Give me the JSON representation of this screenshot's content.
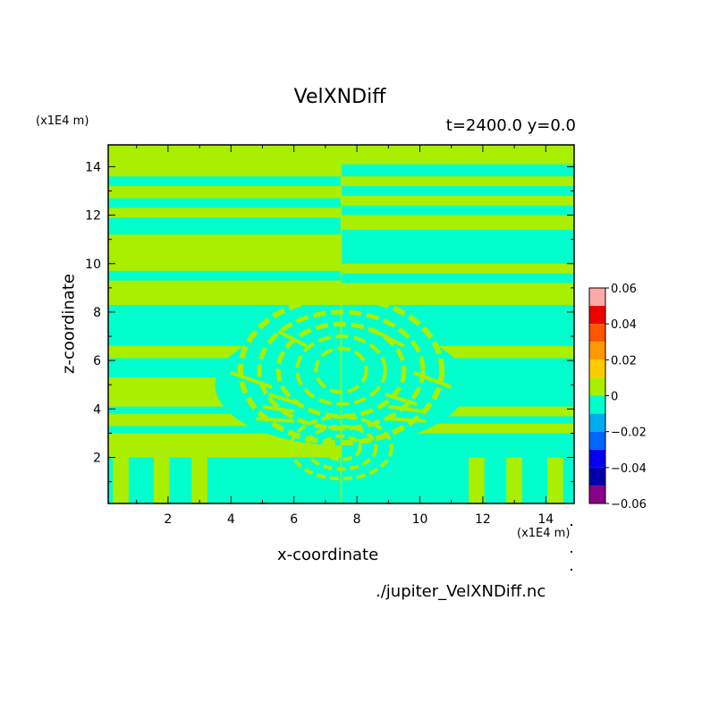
{
  "chart_data": {
    "type": "heatmap",
    "title": "VelXNDiff",
    "subtitle": "t=2400.0 y=0.0",
    "xlabel": "x-coordinate",
    "ylabel": "z-coordinate",
    "x_scale_label": "(x1E4 m)",
    "y_scale_label": "(x1E4 m)",
    "source_file": "./jupiter_VelXNDiff.nc",
    "xlim": [
      0.1,
      14.9
    ],
    "ylim": [
      0.1,
      14.9
    ],
    "x_ticks": [
      2,
      4,
      6,
      8,
      10,
      12,
      14
    ],
    "y_ticks": [
      2,
      4,
      6,
      8,
      10,
      12,
      14
    ],
    "colorbar": {
      "range": [
        -0.06,
        0.06
      ],
      "tick_values": [
        0.06,
        0.04,
        0.02,
        0,
        -0.02,
        -0.04,
        -0.06
      ],
      "tick_labels": [
        "0.06",
        "0.04",
        "0.02",
        "0",
        "−0.02",
        "−0.04",
        "−0.06"
      ],
      "levels": [
        {
          "range": [
            0.05,
            0.06
          ],
          "color": "#ffaaaa"
        },
        {
          "range": [
            0.04,
            0.05
          ],
          "color": "#ee0000"
        },
        {
          "range": [
            0.03,
            0.04
          ],
          "color": "#ff5500"
        },
        {
          "range": [
            0.02,
            0.03
          ],
          "color": "#ff9900"
        },
        {
          "range": [
            0.01,
            0.02
          ],
          "color": "#ffcc00"
        },
        {
          "range": [
            0.0,
            0.01
          ],
          "color": "#aaee00"
        },
        {
          "range": [
            -0.01,
            0.0
          ],
          "color": "#00ffcc"
        },
        {
          "range": [
            -0.02,
            -0.01
          ],
          "color": "#00aaee"
        },
        {
          "range": [
            -0.03,
            -0.02
          ],
          "color": "#0066ff"
        },
        {
          "range": [
            -0.04,
            -0.03
          ],
          "color": "#0000ee"
        },
        {
          "range": [
            -0.05,
            -0.04
          ],
          "color": "#0000aa"
        },
        {
          "range": [
            -0.06,
            -0.05
          ],
          "color": "#880088"
        }
      ]
    },
    "background_level": 0.005,
    "bands_right_side": [
      {
        "z": [
          0.1,
          3.0
        ],
        "v": -0.005
      },
      {
        "z": [
          3.0,
          3.4
        ],
        "v": 0.005
      },
      {
        "z": [
          3.4,
          3.7
        ],
        "v": -0.005
      },
      {
        "z": [
          3.7,
          4.1
        ],
        "v": 0.005
      },
      {
        "z": [
          4.1,
          6.1
        ],
        "v": -0.005
      },
      {
        "z": [
          6.1,
          6.6
        ],
        "v": 0.005
      },
      {
        "z": [
          6.6,
          8.3
        ],
        "v": -0.005
      },
      {
        "z": [
          8.3,
          9.2
        ],
        "v": 0.005
      },
      {
        "z": [
          9.2,
          9.6
        ],
        "v": -0.005
      },
      {
        "z": [
          9.6,
          10.0
        ],
        "v": 0.005
      },
      {
        "z": [
          10.0,
          11.4
        ],
        "v": -0.005
      },
      {
        "z": [
          11.4,
          12.0
        ],
        "v": 0.005
      },
      {
        "z": [
          12.0,
          12.4
        ],
        "v": -0.005
      },
      {
        "z": [
          12.4,
          12.8
        ],
        "v": 0.005
      },
      {
        "z": [
          12.8,
          13.2
        ],
        "v": -0.005
      },
      {
        "z": [
          13.2,
          13.6
        ],
        "v": 0.005
      },
      {
        "z": [
          13.6,
          14.1
        ],
        "v": -0.005
      },
      {
        "z": [
          14.1,
          14.9
        ],
        "v": 0.005
      }
    ],
    "bands_left_side": [
      {
        "z": [
          0.1,
          2.0
        ],
        "v": -0.005
      },
      {
        "z": [
          2.0,
          3.0
        ],
        "v": 0.005
      },
      {
        "z": [
          3.0,
          3.3
        ],
        "v": -0.005
      },
      {
        "z": [
          3.3,
          3.8
        ],
        "v": 0.005
      },
      {
        "z": [
          3.8,
          4.1
        ],
        "v": -0.005
      },
      {
        "z": [
          4.1,
          5.3
        ],
        "v": 0.005
      },
      {
        "z": [
          5.3,
          6.1
        ],
        "v": -0.005
      },
      {
        "z": [
          6.1,
          6.6
        ],
        "v": 0.005
      },
      {
        "z": [
          6.6,
          8.3
        ],
        "v": -0.005
      },
      {
        "z": [
          8.3,
          9.3
        ],
        "v": 0.005
      },
      {
        "z": [
          9.3,
          9.7
        ],
        "v": -0.005
      },
      {
        "z": [
          9.7,
          11.2
        ],
        "v": 0.005
      },
      {
        "z": [
          11.2,
          11.9
        ],
        "v": -0.005
      },
      {
        "z": [
          11.9,
          12.3
        ],
        "v": 0.005
      },
      {
        "z": [
          12.3,
          12.7
        ],
        "v": -0.005
      },
      {
        "z": [
          12.7,
          13.2
        ],
        "v": 0.005
      },
      {
        "z": [
          13.2,
          13.6
        ],
        "v": -0.005
      },
      {
        "z": [
          13.6,
          14.0
        ],
        "v": 0.005
      },
      {
        "z": [
          14.0,
          14.9
        ],
        "v": 0.005
      }
    ]
  }
}
